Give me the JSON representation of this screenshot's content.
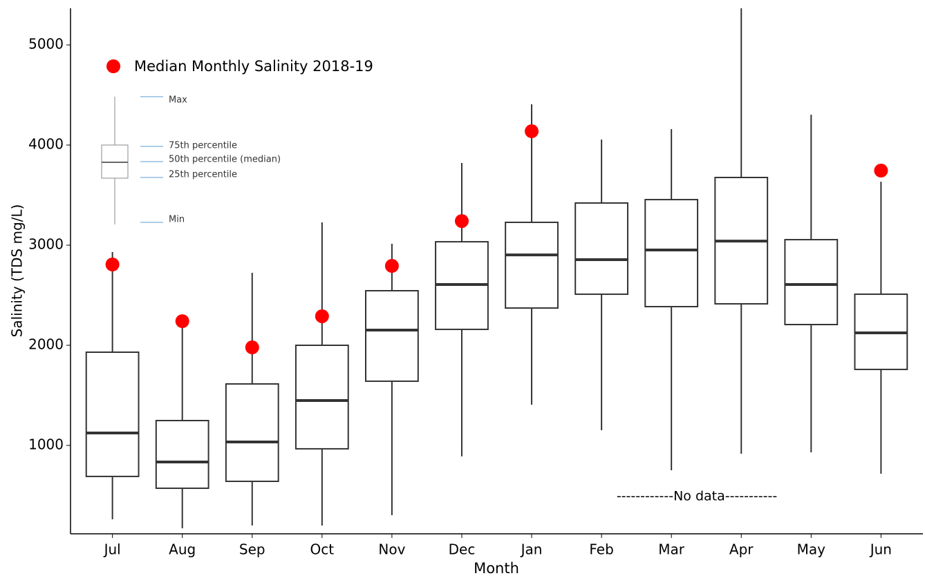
{
  "chart_data": {
    "type": "box",
    "x_label": "Month",
    "y_label": "Salinity (TDS mg/L)",
    "categories": [
      "Jul",
      "Aug",
      "Sep",
      "Oct",
      "Nov",
      "Dec",
      "Jan",
      "Feb",
      "Mar",
      "Apr",
      "May",
      "Jun"
    ],
    "boxes": {
      "color": "#333333",
      "max": [
        2931,
        2230,
        2724,
        3228,
        3014,
        3821,
        4407,
        4055,
        4159,
        5366,
        4303,
        3634
      ],
      "q3": [
        1931,
        1248,
        1614,
        2000,
        2545,
        3034,
        3228,
        3421,
        3455,
        3676,
        3055,
        2510
      ],
      "median": [
        1124,
        834,
        1034,
        1448,
        2152,
        2607,
        2903,
        2855,
        2952,
        3041,
        2607,
        2124
      ],
      "q1": [
        690,
        572,
        641,
        966,
        1641,
        2159,
        2372,
        2510,
        2386,
        2414,
        2207,
        1759
      ],
      "min": [
        262,
        172,
        200,
        200,
        303,
        890,
        1407,
        1152,
        752,
        917,
        931,
        717
      ]
    },
    "points": {
      "name": "Median Monthly Salinity 2018-19",
      "color": "#ff0000",
      "values": [
        2807,
        2241,
        1979,
        2290,
        2793,
        3241,
        4138,
        null,
        null,
        null,
        null,
        3745
      ]
    },
    "ylim": [
      117,
      5366
    ],
    "yticks": [
      1000,
      2000,
      3000,
      4000,
      5000
    ],
    "annotation": "------------No data-----------",
    "key_labels": [
      "Max",
      "75th percentile",
      "50th percentile (median)",
      "25th percentile",
      "Min"
    ]
  }
}
